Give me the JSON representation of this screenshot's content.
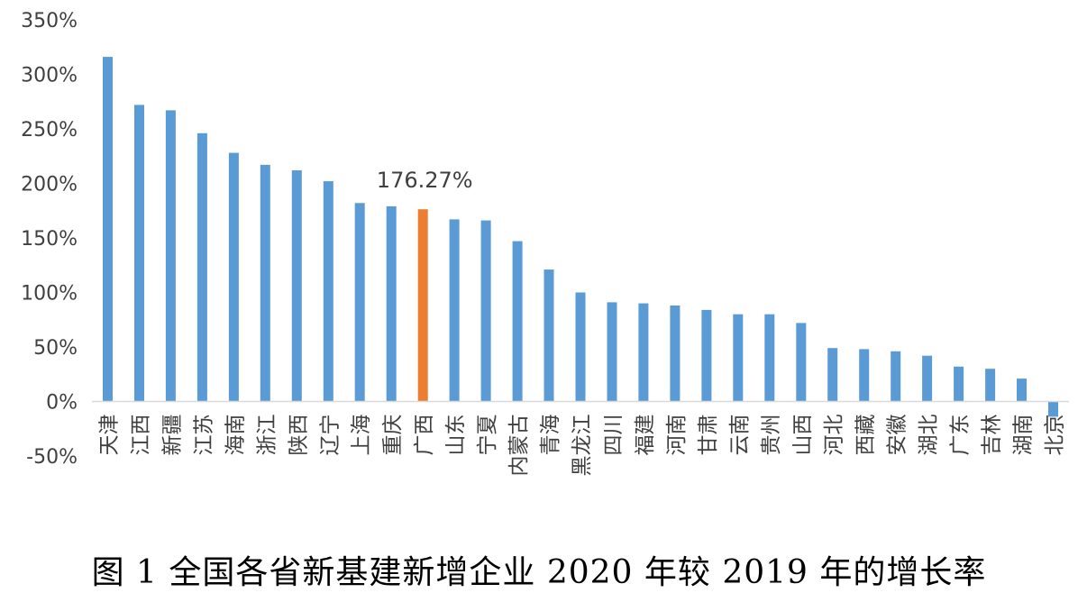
{
  "chart_data": {
    "type": "bar",
    "title": "图 1 全国各省新基建新增企业 2020 年较 2019 年的增长率",
    "xlabel": "",
    "ylabel": "",
    "ylim": [
      -50,
      350
    ],
    "y_ticks": [
      -50,
      0,
      50,
      100,
      150,
      200,
      250,
      300,
      350
    ],
    "y_tick_suffix": "%",
    "grid": false,
    "categories": [
      "天津",
      "江西",
      "新疆",
      "江苏",
      "海南",
      "浙江",
      "陕西",
      "辽宁",
      "上海",
      "重庆",
      "广西",
      "山东",
      "宁夏",
      "内蒙古",
      "青海",
      "黑龙江",
      "四川",
      "福建",
      "河南",
      "甘肃",
      "云南",
      "贵州",
      "山西",
      "河北",
      "西藏",
      "安徽",
      "湖北",
      "广东",
      "吉林",
      "湖南",
      "北京"
    ],
    "values": [
      316,
      272,
      267,
      246,
      228,
      217,
      212,
      202,
      182,
      179,
      176.27,
      167,
      166,
      147,
      121,
      100,
      91,
      90,
      88,
      84,
      80,
      80,
      72,
      49,
      48,
      46,
      42,
      32,
      30,
      21,
      -14
    ],
    "highlight_index": 10,
    "highlight_label": "176.27%",
    "colors": {
      "bar": "#5B9BD5",
      "highlight": "#ED7D31",
      "axis": "#D9D9D9",
      "text": "#404040"
    }
  }
}
